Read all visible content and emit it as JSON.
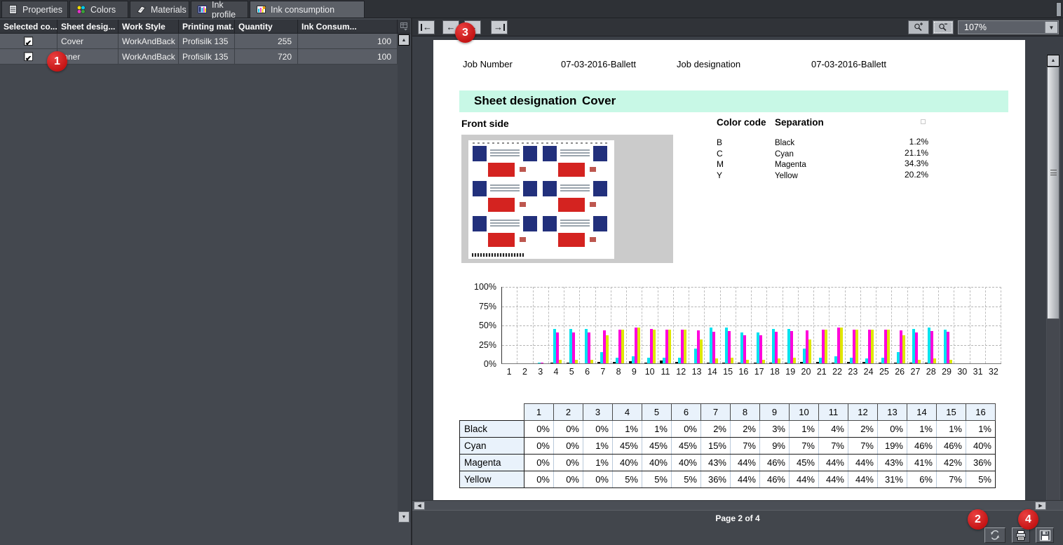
{
  "tabs": [
    {
      "label": "Properties"
    },
    {
      "label": "Colors"
    },
    {
      "label": "Materials"
    },
    {
      "label": "Ink profile"
    },
    {
      "label": "Ink consumption"
    }
  ],
  "left_table": {
    "headers": [
      "Selected co...",
      "Sheet desig...",
      "Work Style",
      "Printing mat...",
      "Quantity",
      "Ink Consum..."
    ],
    "rows": [
      {
        "selected": true,
        "sheet_designation": "Cover",
        "work_style": "WorkAndBack",
        "printing_material": "Profisilk 135",
        "quantity": "255",
        "ink_consumption": "100"
      },
      {
        "selected": true,
        "sheet_designation": "Inner",
        "work_style": "WorkAndBack",
        "printing_material": "Profisilk 135",
        "quantity": "720",
        "ink_consumption": "100"
      }
    ]
  },
  "viewer": {
    "zoom_value": "107%",
    "status": "Page 2 of 4",
    "report": {
      "job_number_label": "Job Number",
      "job_number_value": "07-03-2016-Ballett",
      "job_designation_label": "Job designation",
      "job_designation_value": "07-03-2016-Ballett",
      "sheet_designation_label": "Sheet designation",
      "sheet_designation_value": "Cover",
      "front_side_label": "Front side",
      "color_code_label": "Color code",
      "separation_label": "Separation",
      "separations": [
        {
          "code": "B",
          "name": "Black",
          "value": "1.2%"
        },
        {
          "code": "C",
          "name": "Cyan",
          "value": "21.1%"
        },
        {
          "code": "M",
          "name": "Magenta",
          "value": "34.3%"
        },
        {
          "code": "Y",
          "name": "Yellow",
          "value": "20.2%"
        }
      ],
      "ink_table": {
        "columns": [
          "1",
          "2",
          "3",
          "4",
          "5",
          "6",
          "7",
          "8",
          "9",
          "10",
          "11",
          "12",
          "13",
          "14",
          "15",
          "16"
        ],
        "rows": [
          {
            "label": "Black",
            "values": [
              "0%",
              "0%",
              "0%",
              "1%",
              "1%",
              "0%",
              "2%",
              "2%",
              "3%",
              "1%",
              "4%",
              "2%",
              "0%",
              "1%",
              "1%",
              "1%"
            ]
          },
          {
            "label": "Cyan",
            "values": [
              "0%",
              "0%",
              "1%",
              "45%",
              "45%",
              "45%",
              "15%",
              "7%",
              "9%",
              "7%",
              "7%",
              "7%",
              "19%",
              "46%",
              "46%",
              "40%"
            ]
          },
          {
            "label": "Magenta",
            "values": [
              "0%",
              "0%",
              "1%",
              "40%",
              "40%",
              "40%",
              "43%",
              "44%",
              "46%",
              "45%",
              "44%",
              "44%",
              "43%",
              "41%",
              "42%",
              "36%"
            ]
          },
          {
            "label": "Yellow",
            "values": [
              "0%",
              "0%",
              "0%",
              "5%",
              "5%",
              "5%",
              "36%",
              "44%",
              "46%",
              "44%",
              "44%",
              "44%",
              "31%",
              "6%",
              "7%",
              "5%"
            ]
          }
        ]
      }
    }
  },
  "annotations": {
    "badge1": "1",
    "badge2": "2",
    "badge3": "3",
    "badge4": "4"
  },
  "icons": {
    "left_arrow": "←",
    "right_arrow": "→",
    "up_arrow": "▲",
    "down_arrow": "▼",
    "left_tri": "◀",
    "right_tri": "▶",
    "dropdown": "▼"
  },
  "chart_data": {
    "type": "bar",
    "title": "",
    "xlabel": "",
    "ylabel": "",
    "categories": [
      "1",
      "2",
      "3",
      "4",
      "5",
      "6",
      "7",
      "8",
      "9",
      "10",
      "11",
      "12",
      "13",
      "14",
      "15",
      "16",
      "17",
      "18",
      "19",
      "20",
      "21",
      "22",
      "23",
      "24",
      "25",
      "26",
      "27",
      "28",
      "29",
      "30",
      "31",
      "32"
    ],
    "series": [
      {
        "name": "Black",
        "color": "#000000",
        "values": [
          0,
          0,
          0,
          1,
          1,
          0,
          2,
          2,
          3,
          1,
          4,
          2,
          0,
          1,
          1,
          1,
          1,
          1,
          1,
          2,
          2,
          1,
          2,
          2,
          1,
          1,
          1,
          1,
          0,
          0,
          0,
          0
        ]
      },
      {
        "name": "Cyan",
        "color": "#00e1f0",
        "values": [
          0,
          0,
          1,
          45,
          45,
          45,
          15,
          7,
          9,
          7,
          7,
          7,
          19,
          46,
          46,
          40,
          40,
          45,
          45,
          19,
          7,
          9,
          7,
          6,
          7,
          15,
          45,
          46,
          44,
          0,
          0,
          0
        ]
      },
      {
        "name": "Magenta",
        "color": "#ff00dc",
        "values": [
          0,
          0,
          1,
          40,
          40,
          40,
          43,
          44,
          46,
          45,
          44,
          44,
          43,
          41,
          42,
          36,
          36,
          41,
          42,
          43,
          44,
          46,
          44,
          44,
          44,
          43,
          40,
          42,
          41,
          0,
          0,
          0
        ]
      },
      {
        "name": "Yellow",
        "color": "#dfe600",
        "values": [
          0,
          0,
          0,
          5,
          5,
          5,
          36,
          44,
          46,
          44,
          44,
          44,
          31,
          6,
          7,
          5,
          5,
          6,
          7,
          31,
          44,
          46,
          44,
          44,
          44,
          36,
          5,
          6,
          5,
          0,
          0,
          0
        ]
      }
    ],
    "ylim": [
      0,
      100
    ],
    "y_tick_labels": [
      "100%",
      "75%",
      "50%",
      "25%",
      "0%"
    ],
    "grid": true,
    "legend": false
  }
}
